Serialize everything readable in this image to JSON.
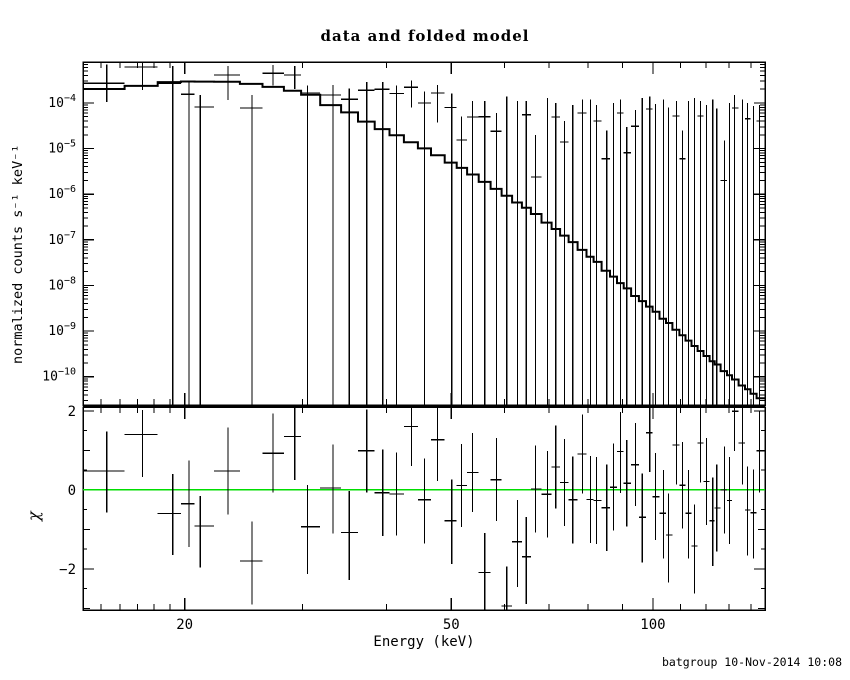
{
  "title": "data and folded model",
  "footer": "batgroup 10-Nov-2014 10:08",
  "labels": {
    "xlabel": "Energy (keV)",
    "ylabel_top": "normalized counts s⁻¹ keV⁻¹",
    "ylabel_bottom": "χ"
  },
  "colors": {
    "foreground": "#000000",
    "background": "#ffffff",
    "zero_line": "#00DD00"
  },
  "chart_data": {
    "type": "line",
    "title": "data and folded model",
    "xlabel": "Energy (keV)",
    "xscale": "log",
    "xlim": [
      14.1,
      147
    ],
    "xticks_major": [
      20,
      50,
      100
    ],
    "xticks_minor": [
      15,
      16,
      17,
      18,
      19,
      30,
      40,
      60,
      70,
      80,
      90,
      110,
      120,
      130,
      140
    ],
    "panels": [
      {
        "name": "spectrum",
        "ylabel": "normalized counts s⁻¹ keV⁻¹",
        "yscale": "log",
        "ylim": [
          2.4e-11,
          0.00079
        ],
        "ytick_exponents": [
          -4,
          -5,
          -6,
          -7,
          -8,
          -9,
          -10
        ],
        "model_anchors": [
          [
            14.1,
            0.00019
          ],
          [
            16,
            0.00021
          ],
          [
            17.5,
            0.00024
          ],
          [
            18.5,
            0.00028
          ],
          [
            20,
            0.000295
          ],
          [
            24,
            0.00029
          ],
          [
            26,
            0.000245
          ],
          [
            28,
            0.00021
          ],
          [
            29.5,
            0.00018
          ],
          [
            31,
            0.00014
          ],
          [
            33,
            9.5e-05
          ],
          [
            35,
            6.5e-05
          ],
          [
            37,
            4.2e-05
          ],
          [
            39,
            2.9e-05
          ],
          [
            41,
            2.1e-05
          ],
          [
            43.5,
            1.4e-05
          ],
          [
            46,
            9.5e-06
          ],
          [
            48,
            6.8e-06
          ],
          [
            50,
            5e-06
          ],
          [
            52.5,
            3.4e-06
          ],
          [
            55,
            2.2e-06
          ],
          [
            58,
            1.4e-06
          ],
          [
            61,
            8.5e-07
          ],
          [
            64.5,
            5.2e-07
          ],
          [
            68,
            3.1e-07
          ],
          [
            71,
            1.9e-07
          ],
          [
            74,
            1.2e-07
          ],
          [
            78,
            6.5e-08
          ],
          [
            82,
            3.5e-08
          ],
          [
            86,
            1.9e-08
          ],
          [
            90,
            1.05e-08
          ],
          [
            94,
            6e-09
          ],
          [
            99,
            3.4e-09
          ],
          [
            104,
            1.8e-09
          ],
          [
            109,
            1e-09
          ],
          [
            114,
            5.5e-10
          ],
          [
            120,
            2.9e-10
          ],
          [
            126,
            1.6e-10
          ],
          [
            132,
            9e-11
          ],
          [
            138,
            5.5e-11
          ],
          [
            145,
            3.2e-11
          ]
        ],
        "points": [
          [
            15.3,
            0.00027,
            0.0007,
            0.000105
          ],
          [
            17.3,
            0.00061,
            0.00078,
            0.00019
          ],
          [
            19.2,
            0.00027,
            0.00065,
            0
          ],
          [
            20.3,
            0.000155,
            0.00029,
            0
          ],
          [
            21.1,
            8.2e-05,
            0.00015,
            0
          ],
          [
            23.2,
            0.00041,
            0.00065,
            0.000115
          ],
          [
            25.2,
            7.8e-05,
            0.00015,
            0
          ],
          [
            27.1,
            0.00045,
            0.00068,
            0.00024
          ],
          [
            29.2,
            0.00041,
            0.00065,
            0.0002
          ],
          [
            30.5,
            0.000165,
            0.00024,
            0
          ],
          [
            33.3,
            0.00015,
            0.00025,
            0
          ],
          [
            35.2,
            0.00012,
            0.00021,
            0
          ],
          [
            37.4,
            0.00019,
            0.00029,
            0
          ],
          [
            39.5,
            0.0002,
            0.00029,
            0
          ],
          [
            41.4,
            0.00016,
            0.00024,
            0
          ],
          [
            43.6,
            0.00022,
            0.00031,
            8e-05
          ],
          [
            45.6,
            0.0001,
            0.00018,
            0
          ],
          [
            47.7,
            0.000165,
            0.00025,
            3.7e-05
          ],
          [
            50.1,
            8e-05,
            0.00016,
            0
          ],
          [
            51.8,
            1.55e-05,
            5e-05,
            0
          ],
          [
            53.8,
            4.9e-05,
            0.00011,
            0
          ],
          [
            56.1,
            5e-05,
            0.00011,
            0
          ],
          [
            58.4,
            2.4e-05,
            6e-05,
            0
          ],
          [
            64.7,
            5.5e-05,
            0.00011,
            0
          ],
          [
            66.8,
            2.4e-06,
            2e-05,
            0
          ],
          [
            71.6,
            4.9e-05,
            0.0001,
            0
          ],
          [
            73.8,
            1.4e-05,
            4e-05,
            0
          ],
          [
            78.5,
            6e-05,
            0.00012,
            0
          ],
          [
            82.4,
            4e-05,
            9e-05,
            0
          ],
          [
            85.3,
            6e-06,
            2.5e-05,
            0
          ],
          [
            89.5,
            6e-05,
            0.00012,
            0
          ],
          [
            91.4,
            8.1e-06,
            3e-05,
            0
          ],
          [
            94.2,
            3.1e-05,
            7e-05,
            0
          ],
          [
            98.9,
            7.4e-05,
            0.00014,
            0
          ],
          [
            108.4,
            5.2e-05,
            0.00011,
            0
          ],
          [
            110.7,
            6e-06,
            2.5e-05,
            0
          ],
          [
            117.8,
            5.2e-05,
            0.00011,
            0
          ],
          [
            127.9,
            2e-06,
            1.5e-05,
            0
          ],
          [
            132.4,
            7.8e-05,
            0.00015,
            0
          ],
          [
            138.4,
            4.5e-05,
            0.0001,
            0
          ],
          [
            144.3,
            4e-05,
            9e-05,
            0
          ]
        ],
        "spikes": [
          [
            60.5,
            0.00014
          ],
          [
            62.8,
            0.00011
          ],
          [
            69.6,
            0.00013
          ],
          [
            75.9,
            9e-05
          ],
          [
            80.7,
            0.00012
          ],
          [
            87.3,
            0.0001
          ],
          [
            96.4,
            0.00013
          ],
          [
            100.9,
            9.5e-05
          ],
          [
            103.7,
            0.00012
          ],
          [
            105.5,
            8e-05
          ],
          [
            113.0,
            0.00011
          ],
          [
            115.4,
            0.00013
          ],
          [
            120.2,
            9e-05
          ],
          [
            122.8,
            0.00012
          ],
          [
            124.5,
            7.5e-05
          ],
          [
            130.1,
            0.0001
          ],
          [
            136.1,
            0.00012
          ],
          [
            141.3,
            8.5e-05
          ]
        ]
      },
      {
        "name": "chi-residuals",
        "ylabel": "χ",
        "yscale": "linear",
        "ylim": [
          -3.04,
          2.1
        ],
        "yticks_major": [
          2,
          0,
          -2
        ],
        "yticks_minor_step": 0.5,
        "zero_line": 0,
        "points": [
          [
            15.3,
            0.48,
            1.0,
            1.05
          ],
          [
            17.3,
            1.4,
            0.63,
            1.07
          ],
          [
            19.2,
            -0.6,
            1.0,
            1.05
          ],
          [
            20.3,
            -0.35,
            1.1,
            1.1
          ],
          [
            21.1,
            -0.91,
            0.76,
            1.06
          ],
          [
            23.2,
            0.48,
            1.1,
            1.1
          ],
          [
            25.2,
            -1.8,
            1.0,
            1.1
          ],
          [
            27.1,
            0.93,
            1.0,
            1.0
          ],
          [
            29.2,
            1.35,
            0.75,
            1.1
          ],
          [
            30.5,
            -0.93,
            1.05,
            1.2
          ],
          [
            33.3,
            0.05,
            1.1,
            1.15
          ],
          [
            35.2,
            -1.08,
            1.05,
            1.2
          ],
          [
            37.4,
            0.99,
            1.05,
            1.05
          ],
          [
            39.5,
            -0.07,
            1.1,
            1.1
          ],
          [
            41.4,
            -0.1,
            1.05,
            1.05
          ],
          [
            43.6,
            1.61,
            0.9,
            1.0
          ],
          [
            45.6,
            -0.25,
            1.05,
            1.1
          ],
          [
            47.7,
            1.27,
            0.95,
            1.05
          ],
          [
            50.1,
            -0.78,
            1.05,
            1.1
          ],
          [
            51.8,
            0.11,
            1.05,
            1.05
          ],
          [
            53.8,
            0.44,
            1.0,
            1.0
          ],
          [
            56.1,
            -2.09,
            1.0,
            1.25
          ],
          [
            58.4,
            0.26,
            1.05,
            1.05
          ],
          [
            60.5,
            -2.94,
            1.0,
            1.3
          ],
          [
            62.8,
            -1.31,
            1.05,
            1.15
          ],
          [
            64.7,
            -1.69,
            1.0,
            1.2
          ],
          [
            66.8,
            0.02,
            1.1,
            1.1
          ],
          [
            69.6,
            -0.11,
            1.1,
            1.1
          ],
          [
            71.6,
            0.58,
            1.05,
            1.05
          ],
          [
            73.8,
            0.19,
            1.1,
            1.1
          ],
          [
            75.9,
            -0.25,
            1.1,
            1.1
          ],
          [
            78.5,
            0.91,
            1.0,
            1.0
          ],
          [
            80.7,
            -0.24,
            1.1,
            1.1
          ],
          [
            82.4,
            -0.27,
            1.1,
            1.1
          ],
          [
            85.3,
            -0.45,
            1.1,
            1.1
          ],
          [
            87.3,
            0.07,
            1.1,
            1.1
          ],
          [
            89.5,
            0.97,
            1.0,
            1.05
          ],
          [
            91.4,
            0.17,
            1.1,
            1.1
          ],
          [
            94.2,
            0.64,
            1.05,
            1.05
          ],
          [
            96.4,
            -0.69,
            1.1,
            1.15
          ],
          [
            98.9,
            1.45,
            0.95,
            1.0
          ],
          [
            100.9,
            -0.17,
            1.1,
            1.1
          ],
          [
            103.7,
            -0.59,
            1.1,
            1.15
          ],
          [
            105.5,
            -1.14,
            1.05,
            1.2
          ],
          [
            108.4,
            1.14,
            1.0,
            1.0
          ],
          [
            110.7,
            0.12,
            1.1,
            1.1
          ],
          [
            113.0,
            -0.59,
            1.1,
            1.15
          ],
          [
            115.4,
            -1.42,
            1.05,
            1.2
          ],
          [
            117.8,
            1.19,
            1.0,
            1.0
          ],
          [
            120.2,
            0.21,
            1.1,
            1.1
          ],
          [
            122.8,
            -0.78,
            1.1,
            1.15
          ],
          [
            124.5,
            -0.46,
            1.1,
            1.1
          ],
          [
            127.9,
            0.0,
            1.1,
            1.1
          ],
          [
            130.1,
            -0.27,
            1.1,
            1.1
          ],
          [
            132.4,
            1.99,
            0.85,
            1.0
          ],
          [
            136.1,
            1.19,
            1.0,
            1.05
          ],
          [
            138.4,
            -0.51,
            1.1,
            1.15
          ],
          [
            141.3,
            -0.58,
            1.1,
            1.15
          ],
          [
            144.3,
            0.99,
            1.0,
            1.05
          ]
        ]
      }
    ]
  }
}
